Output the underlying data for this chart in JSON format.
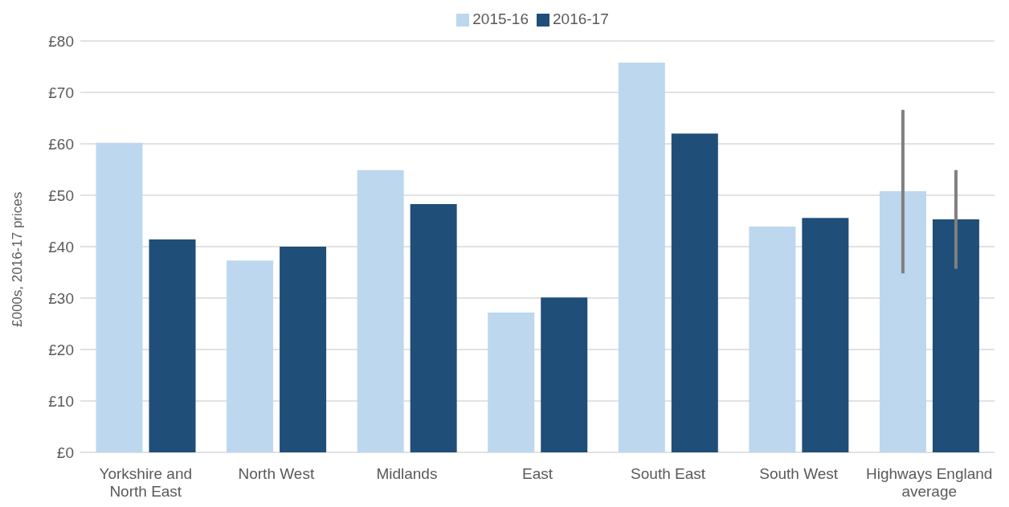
{
  "chart_data": {
    "type": "bar",
    "ylabel": "£000s, 2016-17 prices",
    "categories": [
      "Yorkshire and North East",
      "North West",
      "Midlands",
      "East",
      "South East",
      "South West",
      "Highways England average"
    ],
    "series": [
      {
        "name": "2015-16",
        "color": "#bdd7ee",
        "values": [
          60.2,
          37.3,
          54.9,
          27.2,
          75.8,
          43.9,
          50.8
        ],
        "errors": [
          null,
          null,
          null,
          null,
          null,
          null,
          [
            34.8,
            66.6
          ]
        ]
      },
      {
        "name": "2016-17",
        "color": "#1f4e79",
        "values": [
          41.4,
          40.0,
          48.3,
          30.1,
          62.0,
          45.6,
          45.3
        ],
        "errors": [
          null,
          null,
          null,
          null,
          null,
          null,
          [
            35.7,
            54.9
          ]
        ]
      }
    ],
    "ylim": [
      0,
      80
    ],
    "yticks": [
      {
        "value": 0,
        "label": "£0"
      },
      {
        "value": 10,
        "label": "£10"
      },
      {
        "value": 20,
        "label": "£20"
      },
      {
        "value": 30,
        "label": "£30"
      },
      {
        "value": 40,
        "label": "£40"
      },
      {
        "value": 50,
        "label": "£50"
      },
      {
        "value": 60,
        "label": "£60"
      },
      {
        "value": 70,
        "label": "£70"
      },
      {
        "value": 80,
        "label": "£80"
      }
    ],
    "grid": "y",
    "legend": "top"
  }
}
